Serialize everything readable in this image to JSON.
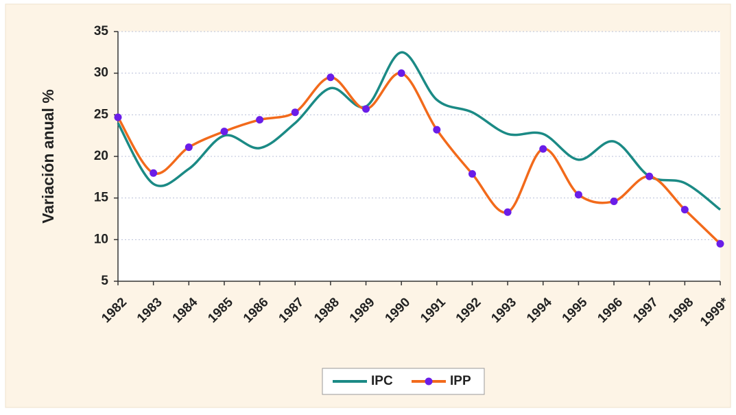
{
  "chart_data": {
    "type": "line",
    "y_label": "Variación anual %",
    "categories": [
      "1982",
      "1983",
      "1984",
      "1985",
      "1986",
      "1987",
      "1988",
      "1989",
      "1990",
      "1991",
      "1992",
      "1993",
      "1994",
      "1995",
      "1996",
      "1997",
      "1998",
      "1999*"
    ],
    "series": [
      {
        "name": "IPC",
        "color": "#1b8a85",
        "smooth": true,
        "markers": false,
        "values": [
          24,
          16.7,
          18.5,
          22.5,
          21,
          24,
          28.2,
          26,
          32.5,
          26.8,
          25.3,
          22.7,
          22.7,
          19.6,
          21.8,
          17.6,
          16.8,
          13.6
        ]
      },
      {
        "name": "IPP",
        "color": "#f26a1b",
        "marker_color": "#6a1de8",
        "smooth": true,
        "markers": true,
        "values": [
          24.7,
          18,
          21.1,
          23,
          24.4,
          25.3,
          29.5,
          25.7,
          30,
          23.2,
          17.9,
          13.3,
          20.9,
          15.4,
          14.6,
          17.6,
          13.6,
          9.5
        ]
      }
    ],
    "ylim": [
      5,
      35
    ],
    "yticks": [
      5,
      10,
      15,
      20,
      25,
      30,
      35
    ],
    "grid": true,
    "legend": "bottom"
  }
}
